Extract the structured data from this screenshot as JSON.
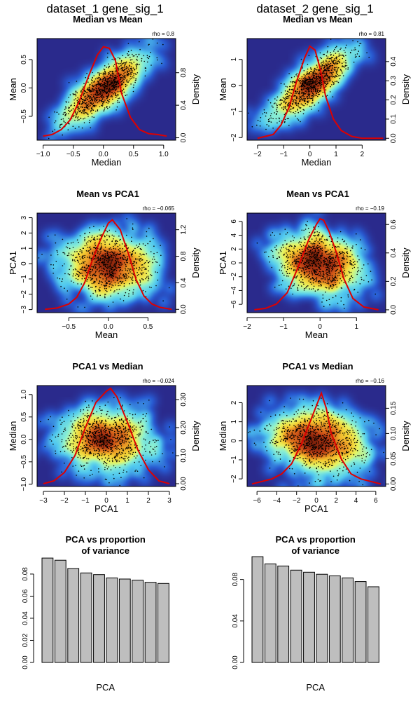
{
  "figure": {
    "columns": [
      "dataset_1 gene_sig_1",
      "dataset_2 gene_sig_1"
    ]
  },
  "colors": {
    "density_line": "#dd0000",
    "bar_fill": "#bebebe",
    "heat_low": "#2a2a8c",
    "heat_high": "#7a1f0a"
  },
  "chart_data": [
    {
      "id": "d1-median-mean",
      "type": "scatter",
      "column": 0,
      "row": 0,
      "title": "Median vs Mean",
      "xlabel": "Median",
      "ylabel": "Mean",
      "y2label": "Density",
      "annotation": "rho = 0.8",
      "xlim": [
        -1.1,
        1.2
      ],
      "ylim": [
        -0.92,
        0.87
      ],
      "y2lim": [
        -0.03,
        1.22
      ],
      "xticks": [
        -1.0,
        -0.5,
        0.0,
        0.5,
        1.0
      ],
      "xticklabels": [
        "−1.0",
        "−0.5",
        "0.0",
        "0.5",
        "1.0"
      ],
      "yticks": [
        -0.5,
        0.0,
        0.5
      ],
      "yticklabels": [
        "−0.5",
        "0.0",
        "0.5"
      ],
      "y2ticks": [
        0.0,
        0.4,
        0.8
      ],
      "y2ticklabels": [
        "0.0",
        "0.4",
        "0.8"
      ],
      "scatter": {
        "n": 900,
        "mx": 0.0,
        "sx": 0.32,
        "my": 0.0,
        "sy": 0.3,
        "rho": 0.8,
        "seed": 11
      },
      "density": {
        "x": [
          -1.0,
          -0.85,
          -0.7,
          -0.55,
          -0.4,
          -0.25,
          -0.1,
          0.0,
          0.1,
          0.2,
          0.3,
          0.45,
          0.6,
          0.75,
          0.9,
          1.05
        ],
        "y": [
          0.02,
          0.04,
          0.1,
          0.22,
          0.45,
          0.75,
          1.02,
          1.12,
          1.1,
          0.95,
          0.55,
          0.25,
          0.1,
          0.05,
          0.04,
          0.02
        ]
      }
    },
    {
      "id": "d2-median-mean",
      "type": "scatter",
      "column": 1,
      "row": 0,
      "title": "Median vs Mean",
      "xlabel": "Median",
      "ylabel": "Mean",
      "y2label": "Density",
      "annotation": "rho = 0.81",
      "xlim": [
        -2.4,
        2.9
      ],
      "ylim": [
        -2.1,
        1.8
      ],
      "y2lim": [
        -0.01,
        0.52
      ],
      "xticks": [
        -2,
        -1,
        0,
        1,
        2
      ],
      "xticklabels": [
        "−2",
        "−1",
        "0",
        "1",
        "2"
      ],
      "yticks": [
        -2,
        -1,
        0,
        1
      ],
      "yticklabels": [
        "−2",
        "−1",
        "0",
        "1"
      ],
      "y2ticks": [
        0.0,
        0.1,
        0.2,
        0.3,
        0.4
      ],
      "y2ticklabels": [
        "0.0",
        "0.1",
        "0.2",
        "0.3",
        "0.4"
      ],
      "scatter": {
        "n": 900,
        "mx": 0.0,
        "sx": 0.75,
        "my": 0.0,
        "sy": 0.65,
        "rho": 0.81,
        "seed": 23
      },
      "density": {
        "x": [
          -2.0,
          -1.7,
          -1.4,
          -1.1,
          -0.8,
          -0.5,
          -0.2,
          0.0,
          0.2,
          0.4,
          0.6,
          0.9,
          1.2,
          1.6,
          2.0,
          2.4,
          2.8
        ],
        "y": [
          0.0,
          0.01,
          0.02,
          0.07,
          0.16,
          0.3,
          0.42,
          0.48,
          0.46,
          0.36,
          0.22,
          0.1,
          0.04,
          0.01,
          0.0,
          0.0,
          0.0
        ]
      }
    },
    {
      "id": "d1-mean-pca1",
      "type": "scatter",
      "column": 0,
      "row": 1,
      "title": "Mean vs PCA1",
      "xlabel": "Mean",
      "ylabel": "PCA1",
      "y2label": "Density",
      "annotation": "rho = −0.065",
      "xlim": [
        -0.9,
        0.85
      ],
      "ylim": [
        -3.2,
        3.3
      ],
      "y2lim": [
        -0.05,
        1.45
      ],
      "xticks": [
        -0.5,
        0.0,
        0.5
      ],
      "xticklabels": [
        "−0.5",
        "0.0",
        "0.5"
      ],
      "yticks": [
        -3,
        -2,
        -1,
        0,
        1,
        2,
        3
      ],
      "yticklabels": [
        "−3",
        "−2",
        "−1",
        "0",
        "1",
        "2",
        "3"
      ],
      "y2ticks": [
        0.0,
        0.4,
        0.8,
        1.2
      ],
      "y2ticklabels": [
        "0.0",
        "0.4",
        "0.8",
        "1.2"
      ],
      "scatter": {
        "n": 900,
        "mx": 0.0,
        "sx": 0.27,
        "my": 0.0,
        "sy": 1.0,
        "rho": -0.065,
        "seed": 37
      },
      "density": {
        "x": [
          -0.8,
          -0.65,
          -0.5,
          -0.4,
          -0.3,
          -0.2,
          -0.1,
          0.0,
          0.05,
          0.15,
          0.25,
          0.35,
          0.45,
          0.55,
          0.65,
          0.8
        ],
        "y": [
          0.0,
          0.02,
          0.08,
          0.18,
          0.4,
          0.75,
          1.05,
          1.3,
          1.35,
          1.2,
          0.85,
          0.45,
          0.2,
          0.08,
          0.03,
          0.0
        ]
      }
    },
    {
      "id": "d2-mean-pca1",
      "type": "scatter",
      "column": 1,
      "row": 1,
      "title": "Mean vs PCA1",
      "xlabel": "Mean",
      "ylabel": "PCA1",
      "y2label": "Density",
      "annotation": "rho = −0.19",
      "xlim": [
        -2.0,
        1.8
      ],
      "ylim": [
        -7.2,
        7.2
      ],
      "y2lim": [
        -0.02,
        0.68
      ],
      "xticks": [
        -2,
        -1,
        0,
        1
      ],
      "xticklabels": [
        "−2",
        "−1",
        "0",
        "1"
      ],
      "yticks": [
        -6,
        -4,
        -2,
        0,
        2,
        4,
        6
      ],
      "yticklabels": [
        "−6",
        "−4",
        "−2",
        "0",
        "2",
        "4",
        "6"
      ],
      "y2ticks": [
        0.0,
        0.2,
        0.4,
        0.6
      ],
      "y2ticklabels": [
        "0.0",
        "0.2",
        "0.4",
        "0.6"
      ],
      "scatter": {
        "n": 900,
        "mx": -0.05,
        "sx": 0.55,
        "my": 0.0,
        "sy": 2.2,
        "rho": -0.19,
        "seed": 41
      },
      "density": {
        "x": [
          -1.8,
          -1.5,
          -1.2,
          -0.9,
          -0.6,
          -0.3,
          -0.1,
          0.0,
          0.1,
          0.25,
          0.45,
          0.65,
          0.9,
          1.2,
          1.6
        ],
        "y": [
          0.0,
          0.01,
          0.04,
          0.12,
          0.3,
          0.5,
          0.6,
          0.64,
          0.63,
          0.55,
          0.4,
          0.22,
          0.08,
          0.02,
          0.0
        ]
      }
    },
    {
      "id": "d1-pca1-median",
      "type": "scatter",
      "column": 0,
      "row": 2,
      "title": "PCA1 vs Median",
      "xlabel": "PCA1",
      "ylabel": "Median",
      "y2label": "Density",
      "annotation": "rho = −0.024",
      "xlim": [
        -3.3,
        3.3
      ],
      "ylim": [
        -1.05,
        1.2
      ],
      "y2lim": [
        -0.01,
        0.35
      ],
      "xticks": [
        -3,
        -2,
        -1,
        0,
        1,
        2,
        3
      ],
      "xticklabels": [
        "−3",
        "−2",
        "−1",
        "0",
        "1",
        "2",
        "3"
      ],
      "yticks": [
        -1.0,
        -0.5,
        0.0,
        0.5,
        1.0
      ],
      "yticklabels": [
        "−1.0",
        "−0.5",
        "0.0",
        "0.5",
        "1.0"
      ],
      "y2ticks": [
        0.0,
        0.1,
        0.2,
        0.3
      ],
      "y2ticklabels": [
        "0.00",
        "0.10",
        "0.20",
        "0.30"
      ],
      "scatter": {
        "n": 900,
        "mx": 0.0,
        "sx": 1.1,
        "my": 0.0,
        "sy": 0.34,
        "rho": -0.024,
        "seed": 53
      },
      "density": {
        "x": [
          -3.0,
          -2.5,
          -2.0,
          -1.5,
          -1.0,
          -0.5,
          0.0,
          0.2,
          0.5,
          1.0,
          1.5,
          2.0,
          2.5,
          3.0
        ],
        "y": [
          0.0,
          0.01,
          0.04,
          0.1,
          0.2,
          0.29,
          0.33,
          0.34,
          0.31,
          0.22,
          0.12,
          0.05,
          0.01,
          0.0
        ]
      }
    },
    {
      "id": "d2-pca1-median",
      "type": "scatter",
      "column": 1,
      "row": 2,
      "title": "PCA1 vs Median",
      "xlabel": "PCA1",
      "ylabel": "Median",
      "y2label": "Density",
      "annotation": "rho = −0.16",
      "xlim": [
        -7.0,
        7.0
      ],
      "ylim": [
        -2.4,
        2.9
      ],
      "y2lim": [
        -0.005,
        0.195
      ],
      "xticks": [
        -6,
        -4,
        -2,
        0,
        2,
        4,
        6
      ],
      "xticklabels": [
        "−6",
        "−4",
        "−2",
        "0",
        "2",
        "4",
        "6"
      ],
      "yticks": [
        -2,
        -1,
        0,
        1,
        2
      ],
      "yticklabels": [
        "−2",
        "−1",
        "0",
        "1",
        "2"
      ],
      "y2ticks": [
        0.0,
        0.05,
        0.1,
        0.15
      ],
      "y2ticklabels": [
        "0.00",
        "0.05",
        "0.10",
        "0.15"
      ],
      "scatter": {
        "n": 900,
        "mx": 0.0,
        "sx": 2.3,
        "my": 0.0,
        "sy": 0.8,
        "rho": -0.16,
        "seed": 67
      },
      "density": {
        "x": [
          -6.5,
          -5.5,
          -4.5,
          -3.5,
          -2.5,
          -1.5,
          -0.5,
          0.0,
          0.5,
          1.0,
          1.5,
          2.5,
          3.5,
          4.5,
          5.5,
          6.5
        ],
        "y": [
          0.0,
          0.005,
          0.01,
          0.02,
          0.04,
          0.08,
          0.13,
          0.155,
          0.18,
          0.15,
          0.1,
          0.05,
          0.02,
          0.01,
          0.005,
          0.0
        ]
      }
    },
    {
      "id": "d1-pca-variance",
      "type": "bar",
      "column": 0,
      "row": 3,
      "title": [
        "PCA vs proportion",
        "of variance"
      ],
      "xlabel": "PCA",
      "ylabel": "",
      "ylim": [
        0,
        0.092
      ],
      "yticks": [
        0.0,
        0.02,
        0.04,
        0.06,
        0.08
      ],
      "yticklabels": [
        "0.00",
        "0.02",
        "0.04",
        "0.06",
        "0.08"
      ],
      "values": [
        0.0945,
        0.0925,
        0.085,
        0.081,
        0.0795,
        0.0765,
        0.0755,
        0.0745,
        0.0725,
        0.0715
      ]
    },
    {
      "id": "d2-pca-variance",
      "type": "bar",
      "column": 1,
      "row": 3,
      "title": [
        "PCA vs proportion",
        "of variance"
      ],
      "xlabel": "PCA",
      "ylabel": "",
      "ylim": [
        0,
        0.098
      ],
      "yticks": [
        0.0,
        0.04,
        0.08
      ],
      "yticklabels": [
        "0.00",
        "0.04",
        "0.08"
      ],
      "values": [
        0.102,
        0.095,
        0.093,
        0.089,
        0.087,
        0.085,
        0.0835,
        0.0815,
        0.078,
        0.073
      ]
    }
  ]
}
